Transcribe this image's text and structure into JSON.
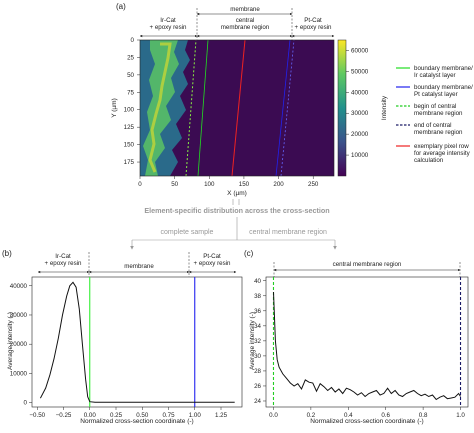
{
  "panels": {
    "a": {
      "label": "(a)",
      "header_membrane": "membrane",
      "header_ir": "Ir-Cat\n+ epoxy resin",
      "header_central": "central\nmembrane region",
      "header_pt": "Pt-Cat\n+ epoxy resin",
      "ylabel": "Y (µm)",
      "xlabel": "X (µm)",
      "yticks": [
        "0",
        "25",
        "50",
        "75",
        "100",
        "125",
        "150",
        "175"
      ],
      "xticks": [
        "0",
        "50",
        "100",
        "150",
        "200",
        "250"
      ],
      "colorbar_label": "Intensity",
      "colorbar_ticks": [
        "60000",
        "50000",
        "40000",
        "30000",
        "20000",
        "10000"
      ],
      "legend": [
        {
          "label": "boundary membrane/\nIr catalyst layer",
          "color": "#22dd22",
          "style": "solid"
        },
        {
          "label": "boundary membrane/\nPt catalyst layer",
          "color": "#2222ee",
          "style": "solid"
        },
        {
          "label": "begin of central\nmembrane region",
          "color": "#22cc22",
          "style": "dashed"
        },
        {
          "label": "end of central\nmembrane region",
          "color": "#1a1a66",
          "style": "dashed"
        },
        {
          "label": "exemplary pixel row\nfor average intensity\ncalculation",
          "color": "#ee2222",
          "style": "solid"
        }
      ]
    },
    "flow": {
      "title": "Element-specific distribution across the cross-section",
      "left": "complete sample",
      "right": "central membrane region"
    },
    "b": {
      "label": "(b)",
      "header_ir": "Ir-Cat\n+ epoxy resin",
      "header_membrane": "membrane",
      "header_pt": "Pt-Cat\n+ epoxy resin",
      "ylabel": "Average intensity (-)",
      "xlabel": "Normalized cross-section coordinate (-)",
      "yticks": [
        "0",
        "10000",
        "20000",
        "30000",
        "40000"
      ],
      "xticks": [
        "−0.50",
        "−0.25",
        "0.00",
        "0.25",
        "0.50",
        "0.75",
        "1.00",
        "1.25"
      ]
    },
    "c": {
      "label": "(c)",
      "header_central": "central membrane region",
      "ylabel": "Average intensity (-)",
      "xlabel": "Normalized cross-section coordinate (-)",
      "yticks": [
        "24",
        "26",
        "28",
        "30",
        "32",
        "34",
        "36",
        "38",
        "40"
      ],
      "xticks": [
        "0.0",
        "0.2",
        "0.4",
        "0.6",
        "0.8",
        "1.0"
      ]
    }
  },
  "chart_data": [
    {
      "type": "line",
      "panel": "b",
      "x": [
        -0.47,
        -0.42,
        -0.38,
        -0.34,
        -0.3,
        -0.26,
        -0.22,
        -0.19,
        -0.16,
        -0.13,
        -0.1,
        -0.07,
        -0.04,
        -0.02,
        0.0,
        0.05,
        0.2,
        0.4,
        0.6,
        0.8,
        1.0,
        1.1,
        1.2,
        1.3,
        1.38
      ],
      "y": [
        1500,
        5000,
        9500,
        15000,
        22000,
        30000,
        36500,
        40000,
        41200,
        39500,
        32000,
        20000,
        8000,
        2000,
        300,
        150,
        100,
        100,
        100,
        100,
        100,
        100,
        100,
        100,
        100
      ],
      "xlabel": "Normalized cross-section coordinate (-)",
      "ylabel": "Average intensity (-)",
      "xlim": [
        -0.55,
        1.45
      ],
      "ylim": [
        -1500,
        43000
      ],
      "vlines": [
        {
          "x": 0.0,
          "color": "#33ee33"
        },
        {
          "x": 1.0,
          "color": "#2222ee"
        }
      ]
    },
    {
      "type": "line",
      "panel": "c",
      "x": [
        0.0,
        0.01,
        0.02,
        0.03,
        0.05,
        0.07,
        0.09,
        0.11,
        0.13,
        0.15,
        0.17,
        0.19,
        0.21,
        0.23,
        0.25,
        0.27,
        0.29,
        0.31,
        0.33,
        0.35,
        0.37,
        0.39,
        0.41,
        0.43,
        0.45,
        0.47,
        0.49,
        0.51,
        0.53,
        0.55,
        0.57,
        0.59,
        0.61,
        0.63,
        0.65,
        0.67,
        0.69,
        0.71,
        0.73,
        0.75,
        0.77,
        0.79,
        0.81,
        0.83,
        0.85,
        0.87,
        0.89,
        0.91,
        0.93,
        0.95,
        0.97,
        0.99,
        1.0
      ],
      "y": [
        38.5,
        32.0,
        29.5,
        28.5,
        27.6,
        27.0,
        26.4,
        26.0,
        26.3,
        25.6,
        26.8,
        26.5,
        26.4,
        25.3,
        26.3,
        25.9,
        25.4,
        25.8,
        25.2,
        25.6,
        25.0,
        25.7,
        25.5,
        25.2,
        24.8,
        25.1,
        24.6,
        25.0,
        25.2,
        25.4,
        24.8,
        25.0,
        25.7,
        25.0,
        25.4,
        24.8,
        24.6,
        25.0,
        25.2,
        25.4,
        25.0,
        24.7,
        24.9,
        24.6,
        24.8,
        24.2,
        24.5,
        24.7,
        24.3,
        24.4,
        24.5,
        25.0,
        24.6
      ],
      "xlabel": "Normalized cross-section coordinate (-)",
      "ylabel": "Average intensity (-)",
      "xlim": [
        -0.04,
        1.04
      ],
      "ylim": [
        23.2,
        40.5
      ],
      "vlines": [
        {
          "x": 0.0,
          "color": "#22cc22",
          "style": "dashed"
        },
        {
          "x": 1.0,
          "color": "#1a1a66",
          "style": "dashed"
        }
      ]
    }
  ]
}
